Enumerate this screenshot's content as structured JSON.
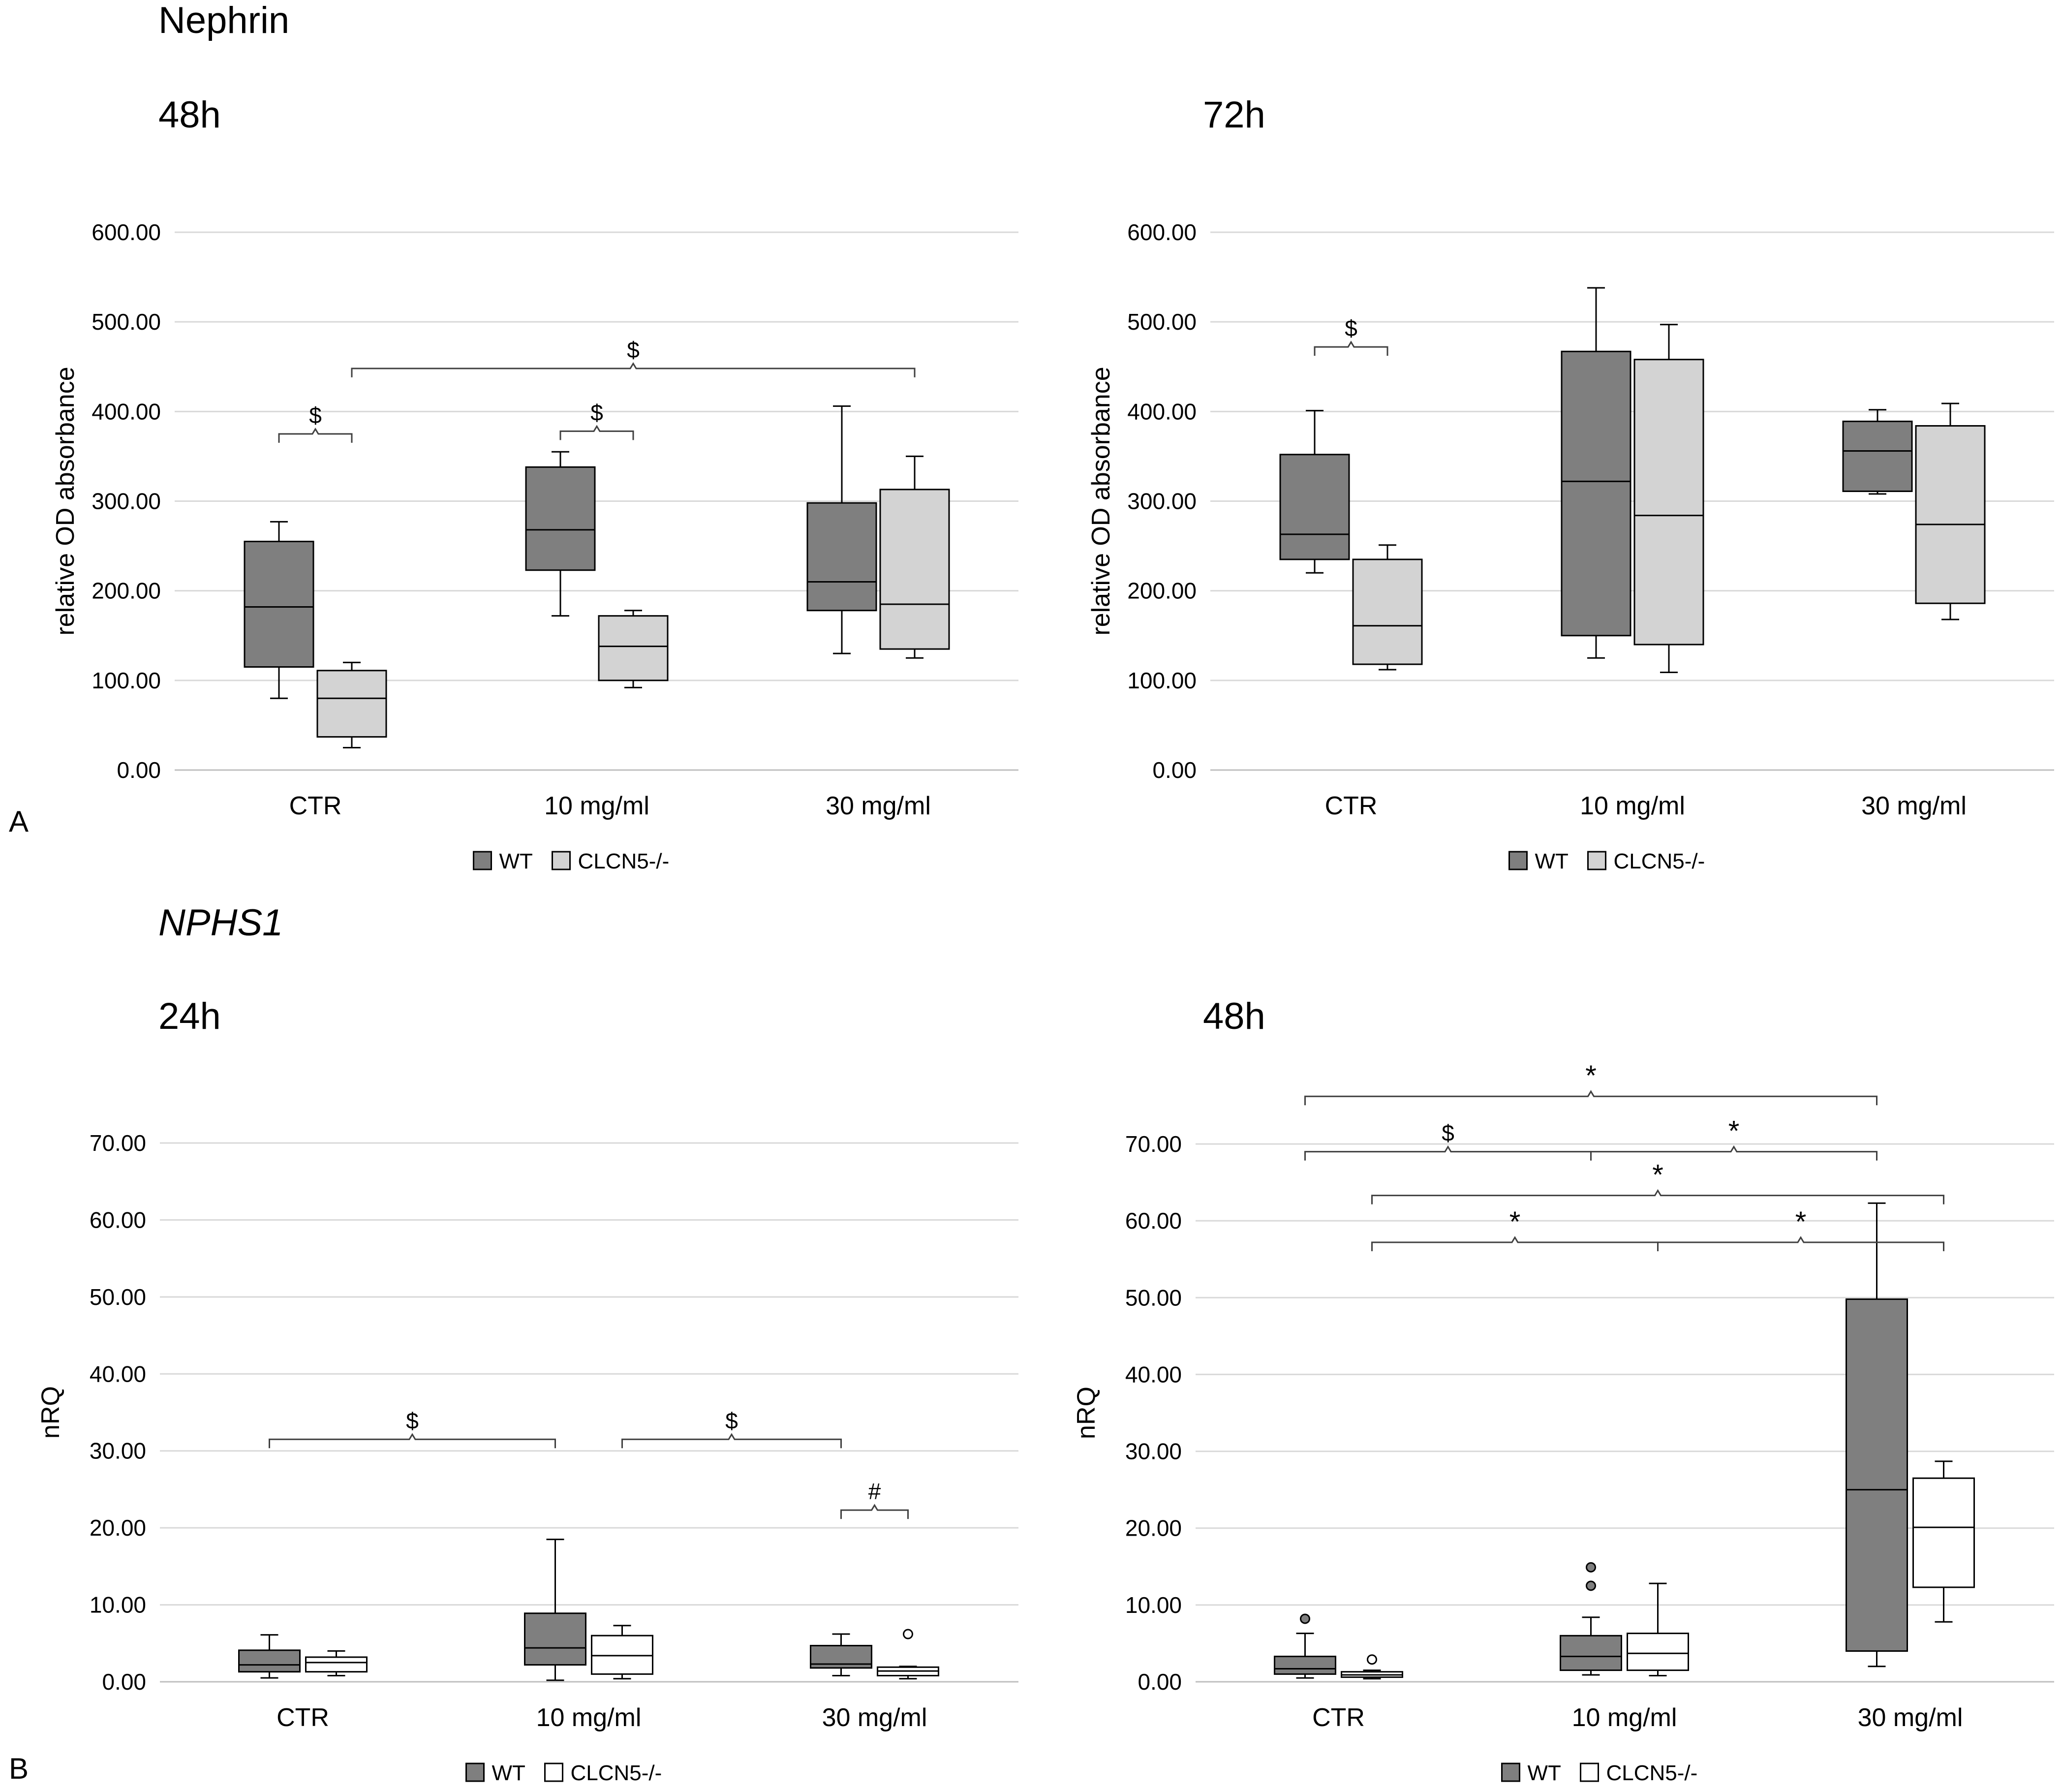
{
  "sections": {
    "top": {
      "title": "Nephrin",
      "letter": "A"
    },
    "bottom": {
      "title": "NPHS1",
      "letter": "B"
    }
  },
  "colors": {
    "wt": "#7f7f7f",
    "ko_gray": "#d3d3d3",
    "ko_white": "#ffffff",
    "grid": "#d9d9d9",
    "stroke": "#000000"
  },
  "chart_data": [
    {
      "id": "nephrin-48h",
      "type": "box",
      "subtitle": "48h",
      "ylabel": "relative OD absorbance",
      "ylim": [
        0,
        600
      ],
      "yticks": [
        "0.00",
        "100.00",
        "200.00",
        "300.00",
        "400.00",
        "500.00",
        "600.00"
      ],
      "categories": [
        "CTR",
        "10 mg/ml",
        "30 mg/ml"
      ],
      "legend": [
        "WT",
        "CLCN5-/-"
      ],
      "series": [
        {
          "name": "WT",
          "boxes": [
            {
              "min": 80,
              "q1": 115,
              "median": 182,
              "q3": 255,
              "max": 277
            },
            {
              "min": 172,
              "q1": 223,
              "median": 268,
              "q3": 338,
              "max": 355
            },
            {
              "min": 130,
              "q1": 178,
              "median": 210,
              "q3": 298,
              "max": 406
            }
          ]
        },
        {
          "name": "CLCN5-/-",
          "boxes": [
            {
              "min": 25,
              "q1": 37,
              "median": 80,
              "q3": 111,
              "max": 120
            },
            {
              "min": 92,
              "q1": 100,
              "median": 138,
              "q3": 172,
              "max": 178
            },
            {
              "min": 125,
              "q1": 135,
              "median": 185,
              "q3": 313,
              "max": 350
            }
          ]
        }
      ],
      "brackets": [
        {
          "label": "$",
          "from": [
            0,
            0
          ],
          "to": [
            0,
            1
          ],
          "y": 375
        },
        {
          "label": "$",
          "from": [
            1,
            0
          ],
          "to": [
            1,
            1
          ],
          "y": 378
        },
        {
          "label": "$",
          "from": [
            0,
            1
          ],
          "to": [
            2,
            1
          ],
          "y": 448
        }
      ]
    },
    {
      "id": "nephrin-72h",
      "type": "box",
      "subtitle": "72h",
      "ylabel": "relative OD absorbance",
      "ylim": [
        0,
        600
      ],
      "yticks": [
        "0.00",
        "100.00",
        "200.00",
        "300.00",
        "400.00",
        "500.00",
        "600.00"
      ],
      "categories": [
        "CTR",
        "10 mg/ml",
        "30 mg/ml"
      ],
      "legend": [
        "WT",
        "CLCN5-/-"
      ],
      "series": [
        {
          "name": "WT",
          "boxes": [
            {
              "min": 220,
              "q1": 235,
              "median": 263,
              "q3": 352,
              "max": 401
            },
            {
              "min": 125,
              "q1": 150,
              "median": 322,
              "q3": 467,
              "max": 538
            },
            {
              "min": 308,
              "q1": 311,
              "median": 356,
              "q3": 389,
              "max": 402
            }
          ]
        },
        {
          "name": "CLCN5-/-",
          "boxes": [
            {
              "min": 112,
              "q1": 118,
              "median": 161,
              "q3": 235,
              "max": 251
            },
            {
              "min": 109,
              "q1": 140,
              "median": 284,
              "q3": 458,
              "max": 497
            },
            {
              "min": 168,
              "q1": 186,
              "median": 274,
              "q3": 384,
              "max": 409
            }
          ]
        }
      ],
      "brackets": [
        {
          "label": "$",
          "from": [
            0,
            0
          ],
          "to": [
            0,
            1
          ],
          "y": 472
        }
      ]
    },
    {
      "id": "nphs1-24h",
      "type": "box",
      "subtitle": "24h",
      "ylabel": "nRQ",
      "ylim": [
        0,
        70
      ],
      "yticks": [
        "0.00",
        "10.00",
        "20.00",
        "30.00",
        "40.00",
        "50.00",
        "60.00",
        "70.00"
      ],
      "categories": [
        "CTR",
        "10 mg/ml",
        "30 mg/ml"
      ],
      "legend": [
        "WT",
        "CLCN5-/-"
      ],
      "series": [
        {
          "name": "WT",
          "boxes": [
            {
              "min": 0.5,
              "q1": 1.3,
              "median": 2.2,
              "q3": 4.1,
              "max": 6.1
            },
            {
              "min": 0.2,
              "q1": 2.2,
              "median": 4.4,
              "q3": 8.9,
              "max": 18.5
            },
            {
              "min": 0.8,
              "q1": 1.8,
              "median": 2.3,
              "q3": 4.7,
              "max": 6.2
            }
          ]
        },
        {
          "name": "CLCN5-/-",
          "boxes": [
            {
              "min": 0.8,
              "q1": 1.3,
              "median": 2.5,
              "q3": 3.2,
              "max": 4.0
            },
            {
              "min": 0.4,
              "q1": 1.0,
              "median": 3.4,
              "q3": 6.0,
              "max": 7.3
            },
            {
              "min": 0.4,
              "q1": 0.8,
              "median": 1.4,
              "q3": 1.9,
              "max": 2.0,
              "outliers": [
                6.2
              ]
            }
          ]
        }
      ],
      "brackets": [
        {
          "label": "$",
          "from": [
            0,
            0
          ],
          "to": [
            1,
            0
          ],
          "y": 31.5
        },
        {
          "label": "$",
          "from": [
            1,
            1
          ],
          "to": [
            2,
            0
          ],
          "y": 31.5
        },
        {
          "label": "#",
          "from": [
            2,
            0
          ],
          "to": [
            2,
            1
          ],
          "y": 22.3
        }
      ]
    },
    {
      "id": "nphs1-48h",
      "type": "box",
      "subtitle": "48h",
      "ylabel": "nRQ",
      "ylim": [
        0,
        70
      ],
      "yticks": [
        "0.00",
        "10.00",
        "20.00",
        "30.00",
        "40.00",
        "50.00",
        "60.00",
        "70.00"
      ],
      "categories": [
        "CTR",
        "10 mg/ml",
        "30 mg/ml"
      ],
      "legend": [
        "WT",
        "CLCN5-/-"
      ],
      "series": [
        {
          "name": "WT",
          "boxes": [
            {
              "min": 0.5,
              "q1": 1.0,
              "median": 1.7,
              "q3": 3.3,
              "max": 6.3,
              "outliers": [
                8.2
              ]
            },
            {
              "min": 0.9,
              "q1": 1.5,
              "median": 3.3,
              "q3": 6.0,
              "max": 8.4,
              "outliers": [
                12.5,
                14.9
              ]
            },
            {
              "min": 2.0,
              "q1": 4.0,
              "median": 25.0,
              "q3": 49.8,
              "max": 62.3
            }
          ]
        },
        {
          "name": "CLCN5-/-",
          "boxes": [
            {
              "min": 0.4,
              "q1": 0.6,
              "median": 0.9,
              "q3": 1.3,
              "max": 1.5,
              "outliers": [
                2.9
              ]
            },
            {
              "min": 0.8,
              "q1": 1.5,
              "median": 3.7,
              "q3": 6.3,
              "max": 12.8
            },
            {
              "min": 7.8,
              "q1": 12.3,
              "median": 20.1,
              "q3": 26.5,
              "max": 28.7
            }
          ]
        }
      ],
      "brackets": [
        {
          "label": "*",
          "from": [
            0,
            0
          ],
          "to": [
            2,
            0
          ],
          "y": 76.2
        },
        {
          "label": "$",
          "from": [
            0,
            0
          ],
          "to": [
            1,
            0
          ],
          "y": 69.0
        },
        {
          "label": "*",
          "from": [
            1,
            0
          ],
          "to": [
            2,
            0
          ],
          "y": 69.0
        },
        {
          "label": "*",
          "from": [
            0,
            1
          ],
          "to": [
            2,
            1
          ],
          "y": 63.3
        },
        {
          "label": "*",
          "from": [
            0,
            1
          ],
          "to": [
            1,
            1
          ],
          "y": 57.2
        },
        {
          "label": "*",
          "from": [
            1,
            1
          ],
          "to": [
            2,
            1
          ],
          "y": 57.2
        }
      ]
    }
  ]
}
